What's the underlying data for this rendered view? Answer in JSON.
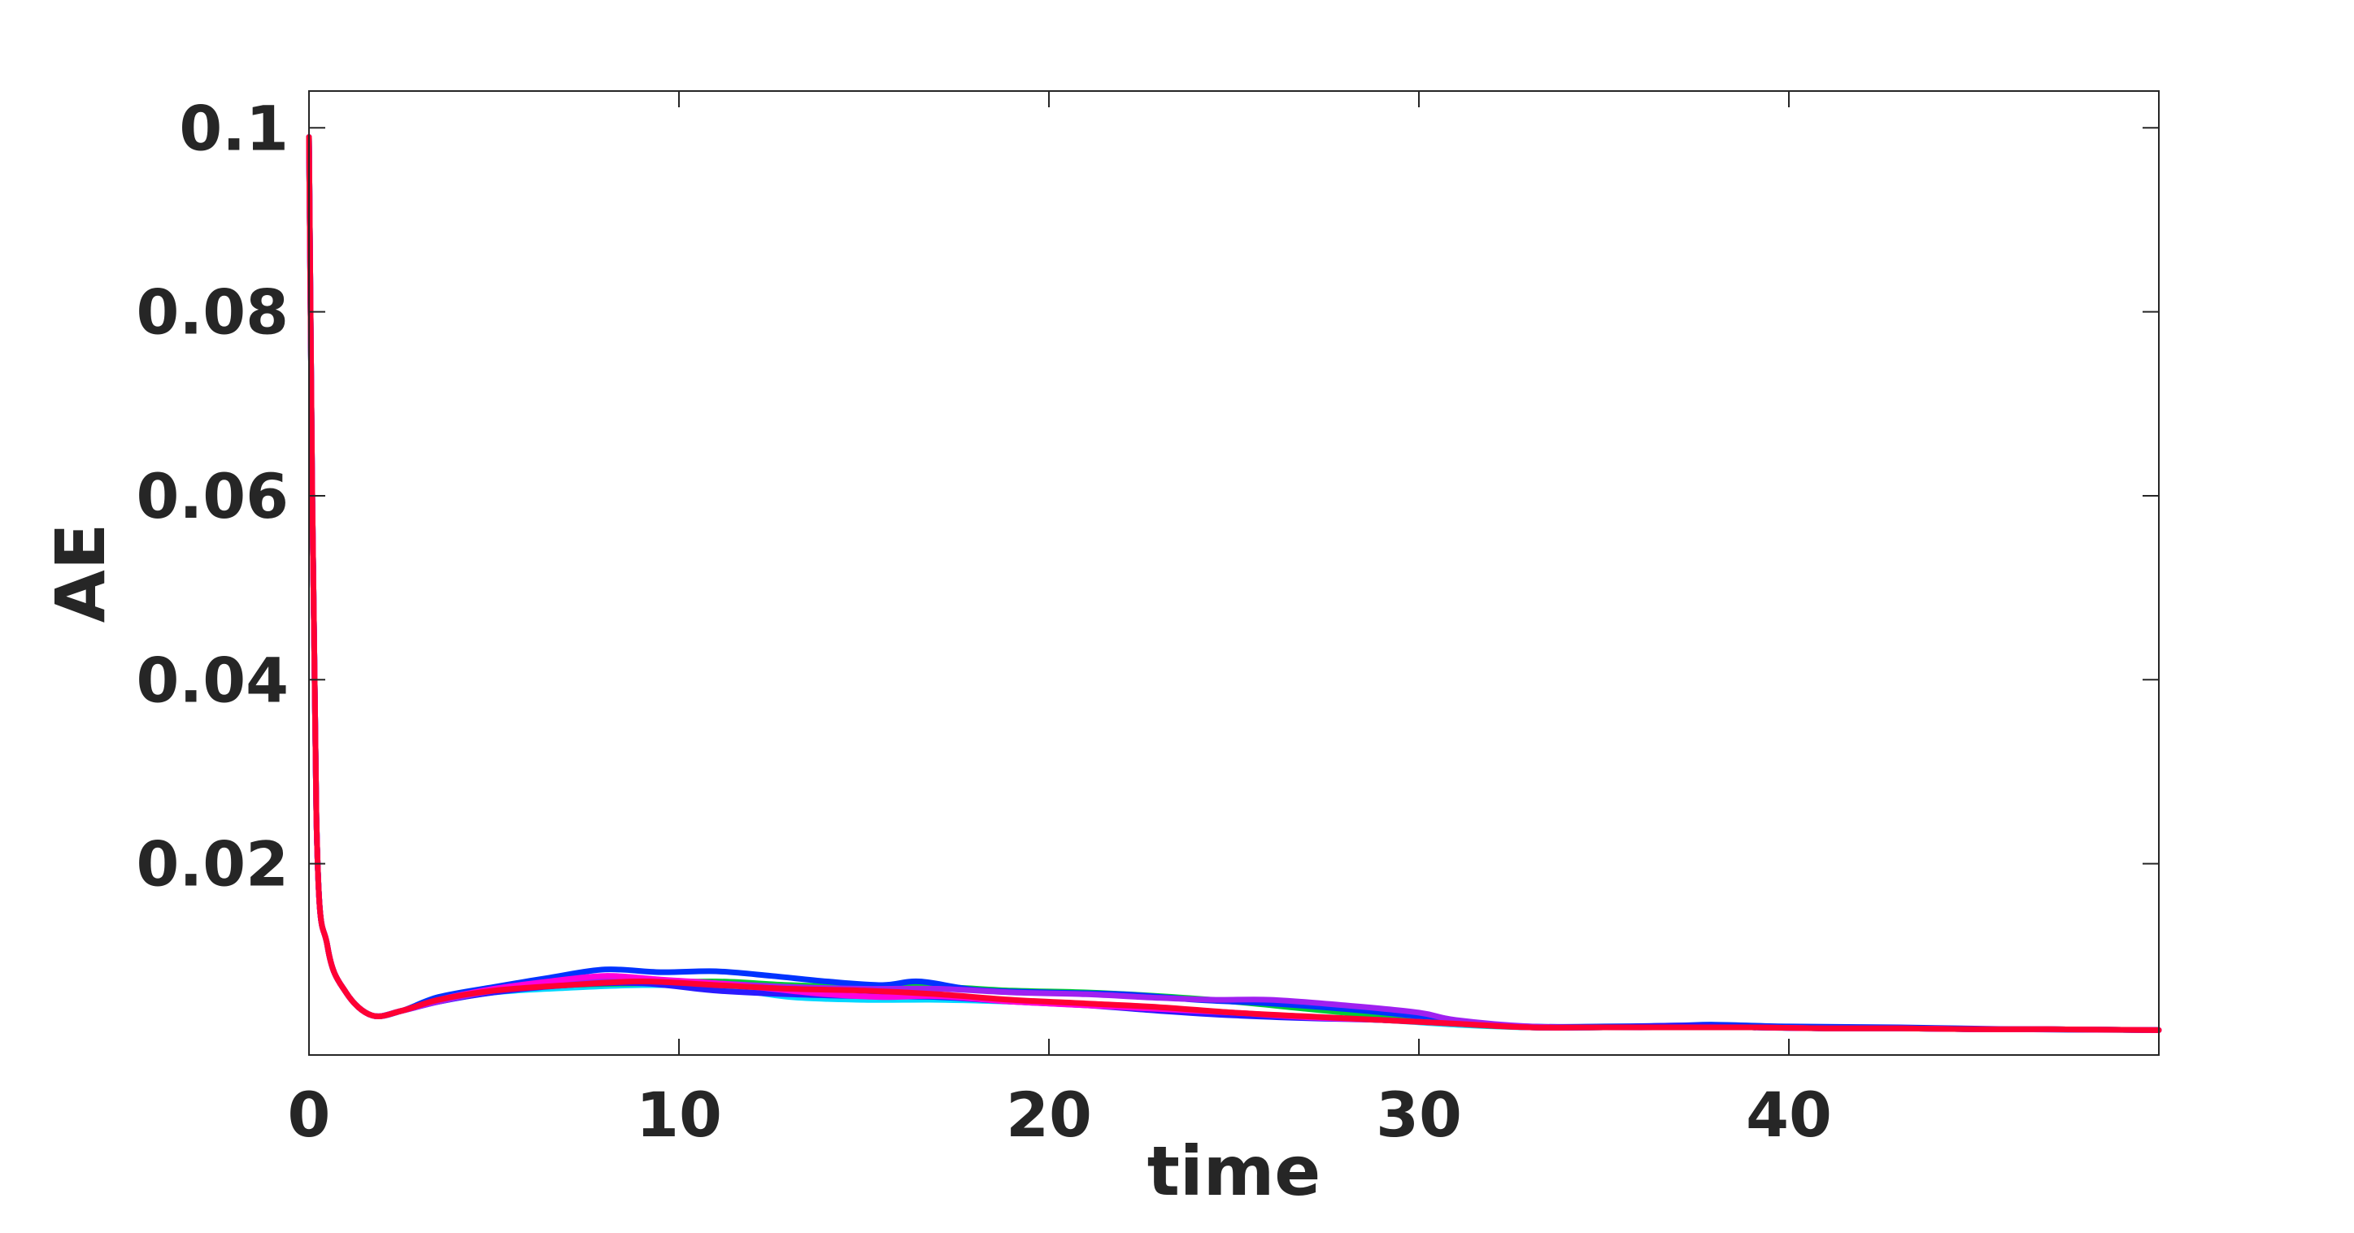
{
  "chart_data": {
    "type": "line",
    "title": "",
    "xlabel": "time",
    "ylabel": "AE",
    "xlim": [
      0,
      50
    ],
    "ylim": [
      0,
      0.1
    ],
    "grid": false,
    "xticks": [
      0,
      10,
      20,
      30,
      40
    ],
    "xtick_labels": [
      "0",
      "10",
      "20",
      "30",
      "40"
    ],
    "yticks": [
      0.02,
      0.04,
      0.06,
      0.08,
      0.1
    ],
    "ytick_labels": [
      "0.02",
      "0.04",
      "0.06",
      "0.08",
      "0.1"
    ],
    "series": [
      {
        "color": "#00d8ff",
        "x": [
          0,
          0.2,
          0.5,
          1,
          1.7,
          2.5,
          3.5,
          5,
          7,
          9,
          11,
          13,
          15,
          17,
          19,
          21,
          23,
          25,
          27,
          29,
          31,
          33,
          35,
          37,
          39,
          41,
          43,
          45,
          47,
          50
        ],
        "y": [
          0.099,
          0.025,
          0.011,
          0.006,
          0.0035,
          0.004,
          0.005,
          0.006,
          0.0065,
          0.0068,
          0.0066,
          0.0055,
          0.0052,
          0.0052,
          0.005,
          0.0047,
          0.0042,
          0.0037,
          0.0033,
          0.003,
          0.0025,
          0.0022,
          0.0022,
          0.0022,
          0.0022,
          0.0021,
          0.0021,
          0.002,
          0.002,
          0.0019
        ]
      },
      {
        "color": "#00cc33",
        "x": [
          0,
          0.2,
          0.5,
          1,
          1.7,
          2.5,
          3.5,
          5,
          7,
          9,
          11,
          13,
          15,
          17,
          19,
          21,
          23,
          25,
          27,
          29,
          31,
          33,
          35,
          37,
          39,
          41,
          43,
          45,
          47,
          50
        ],
        "y": [
          0.099,
          0.025,
          0.011,
          0.006,
          0.0035,
          0.004,
          0.0052,
          0.0062,
          0.0068,
          0.007,
          0.0072,
          0.0068,
          0.0066,
          0.0066,
          0.0062,
          0.006,
          0.0056,
          0.005,
          0.0042,
          0.0034,
          0.0026,
          0.0022,
          0.0022,
          0.0022,
          0.0022,
          0.0021,
          0.0021,
          0.002,
          0.002,
          0.0019
        ]
      },
      {
        "color": "#0033ff",
        "x": [
          0,
          0.2,
          0.5,
          1,
          1.7,
          2.5,
          3.5,
          5,
          6.5,
          8,
          9.5,
          11,
          12.5,
          14,
          15.5,
          16.5,
          18,
          20,
          22,
          24,
          26,
          28,
          30,
          31,
          33,
          35,
          37,
          38,
          40,
          43,
          46,
          50
        ],
        "y": [
          0.099,
          0.025,
          0.011,
          0.006,
          0.0035,
          0.004,
          0.0055,
          0.0066,
          0.0076,
          0.0085,
          0.0082,
          0.0083,
          0.0078,
          0.0072,
          0.0068,
          0.0072,
          0.0063,
          0.006,
          0.0058,
          0.0052,
          0.0048,
          0.0042,
          0.0034,
          0.0028,
          0.0023,
          0.0023,
          0.0024,
          0.0025,
          0.0023,
          0.0022,
          0.002,
          0.0019
        ]
      },
      {
        "color": "#2a1aff",
        "x": [
          0,
          0.2,
          0.5,
          1,
          1.7,
          2.5,
          3.5,
          5,
          7,
          9,
          11,
          13,
          15,
          17,
          19,
          21,
          23,
          25,
          27,
          29,
          31,
          33,
          35,
          37,
          39,
          41,
          43,
          45,
          47,
          50
        ],
        "y": [
          0.099,
          0.025,
          0.011,
          0.006,
          0.0035,
          0.004,
          0.005,
          0.006,
          0.0068,
          0.007,
          0.0062,
          0.0058,
          0.0056,
          0.0055,
          0.005,
          0.0046,
          0.004,
          0.0035,
          0.0032,
          0.003,
          0.0026,
          0.0022,
          0.0022,
          0.0024,
          0.0022,
          0.0021,
          0.0021,
          0.002,
          0.002,
          0.0019
        ]
      },
      {
        "color": "#a020f0",
        "x": [
          0,
          0.2,
          0.5,
          1,
          1.7,
          2.5,
          3.5,
          5,
          7,
          9,
          11,
          13,
          15,
          17,
          19,
          21,
          23,
          24.5,
          26,
          28,
          30,
          31,
          33,
          35,
          37,
          39,
          41,
          43,
          45,
          47,
          50
        ],
        "y": [
          0.099,
          0.025,
          0.011,
          0.006,
          0.0035,
          0.004,
          0.005,
          0.0062,
          0.0072,
          0.0074,
          0.007,
          0.0066,
          0.0064,
          0.0064,
          0.006,
          0.0058,
          0.0054,
          0.0052,
          0.0052,
          0.0046,
          0.0038,
          0.003,
          0.0023,
          0.0022,
          0.0022,
          0.0022,
          0.0021,
          0.0021,
          0.002,
          0.002,
          0.0019
        ]
      },
      {
        "color": "#ff00dd",
        "x": [
          0,
          0.2,
          0.5,
          1,
          1.7,
          2.5,
          3.5,
          5,
          6.5,
          8,
          9.5,
          11,
          12.5,
          14,
          15.5,
          17,
          19,
          21,
          23,
          25,
          27,
          29,
          31,
          33,
          35,
          37,
          39,
          41,
          43,
          45,
          47,
          50
        ],
        "y": [
          0.099,
          0.025,
          0.011,
          0.006,
          0.0035,
          0.004,
          0.0052,
          0.0064,
          0.0072,
          0.0078,
          0.0074,
          0.007,
          0.0064,
          0.0058,
          0.0055,
          0.0056,
          0.005,
          0.0046,
          0.0042,
          0.0038,
          0.0033,
          0.003,
          0.0026,
          0.0022,
          0.0022,
          0.0022,
          0.0022,
          0.0021,
          0.0021,
          0.002,
          0.002,
          0.0019
        ]
      },
      {
        "color": "#ff0033",
        "x": [
          0,
          0.2,
          0.5,
          1,
          1.7,
          2.5,
          3.5,
          5,
          7,
          9,
          11,
          13,
          15,
          17,
          19,
          21,
          23,
          25,
          27,
          29,
          31,
          33,
          35,
          37,
          39,
          41,
          43,
          45,
          47,
          50
        ],
        "y": [
          0.099,
          0.025,
          0.011,
          0.006,
          0.0035,
          0.004,
          0.0052,
          0.0062,
          0.0068,
          0.0072,
          0.0068,
          0.0064,
          0.0062,
          0.0058,
          0.0052,
          0.0048,
          0.0044,
          0.0038,
          0.0034,
          0.003,
          0.0026,
          0.0022,
          0.0022,
          0.0022,
          0.0022,
          0.0021,
          0.0021,
          0.002,
          0.002,
          0.0019
        ]
      }
    ]
  }
}
